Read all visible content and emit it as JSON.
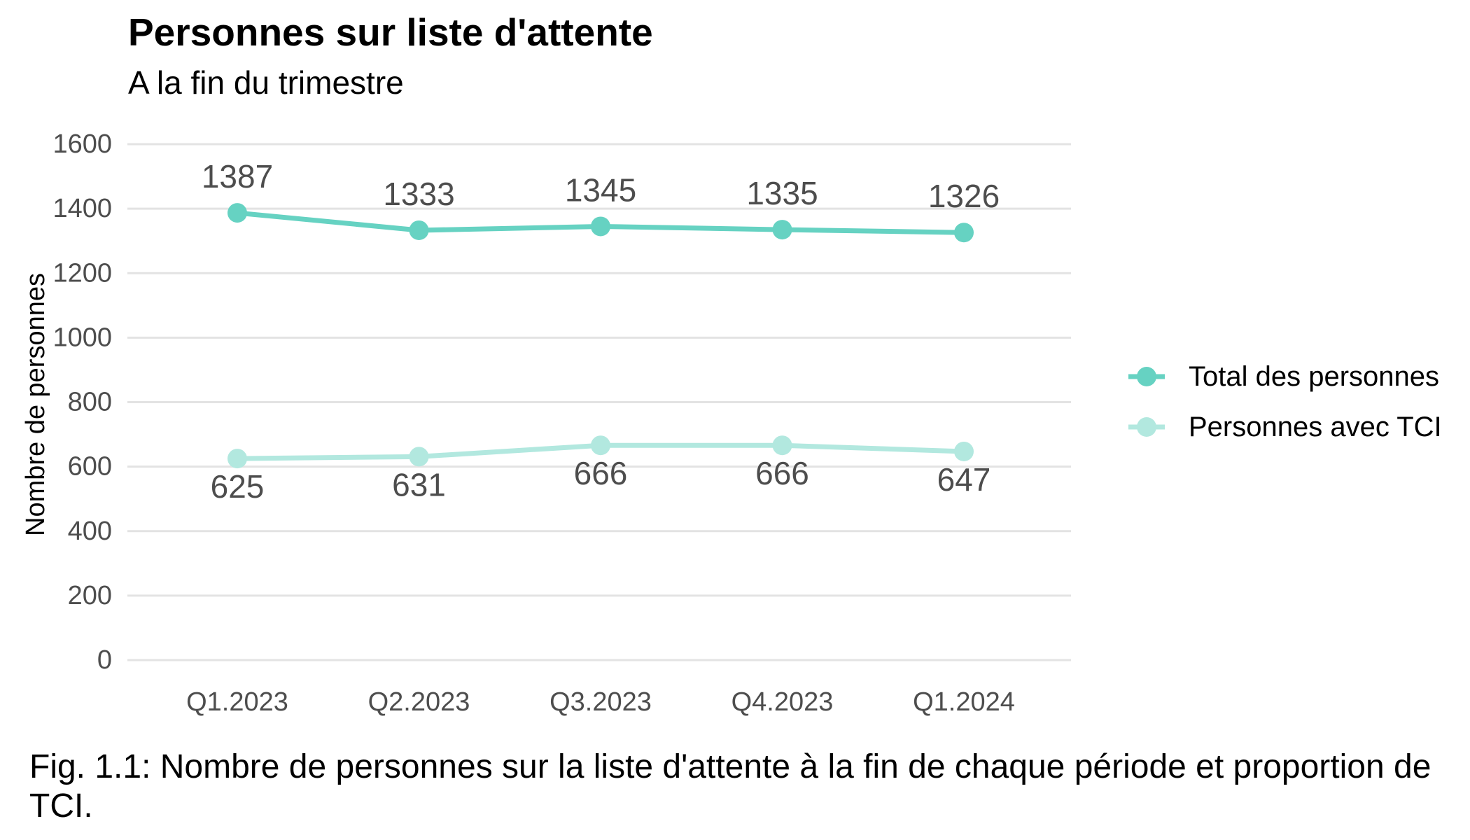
{
  "chart_data": {
    "type": "line",
    "title": "Personnes sur liste d'attente",
    "subtitle": "A la fin du trimestre",
    "xlabel": "",
    "ylabel": "Nombre de personnes",
    "categories": [
      "Q1.2023",
      "Q2.2023",
      "Q3.2023",
      "Q4.2023",
      "Q1.2024"
    ],
    "ylim": [
      0,
      1600
    ],
    "yticks": [
      0,
      200,
      400,
      600,
      800,
      1000,
      1200,
      1400,
      1600
    ],
    "grid": true,
    "legend_position": "right",
    "series": [
      {
        "name": "Total des personnes",
        "values": [
          1387,
          1333,
          1345,
          1335,
          1326
        ],
        "color": "#66d2c2",
        "label_position": "above"
      },
      {
        "name": "Personnes avec TCI",
        "values": [
          625,
          631,
          666,
          666,
          647
        ],
        "color": "#b2e8df",
        "label_position": "below"
      }
    ]
  },
  "caption": "Fig. 1.1: Nombre de personnes sur la liste d'attente à la fin de chaque période et proportion de TCI."
}
